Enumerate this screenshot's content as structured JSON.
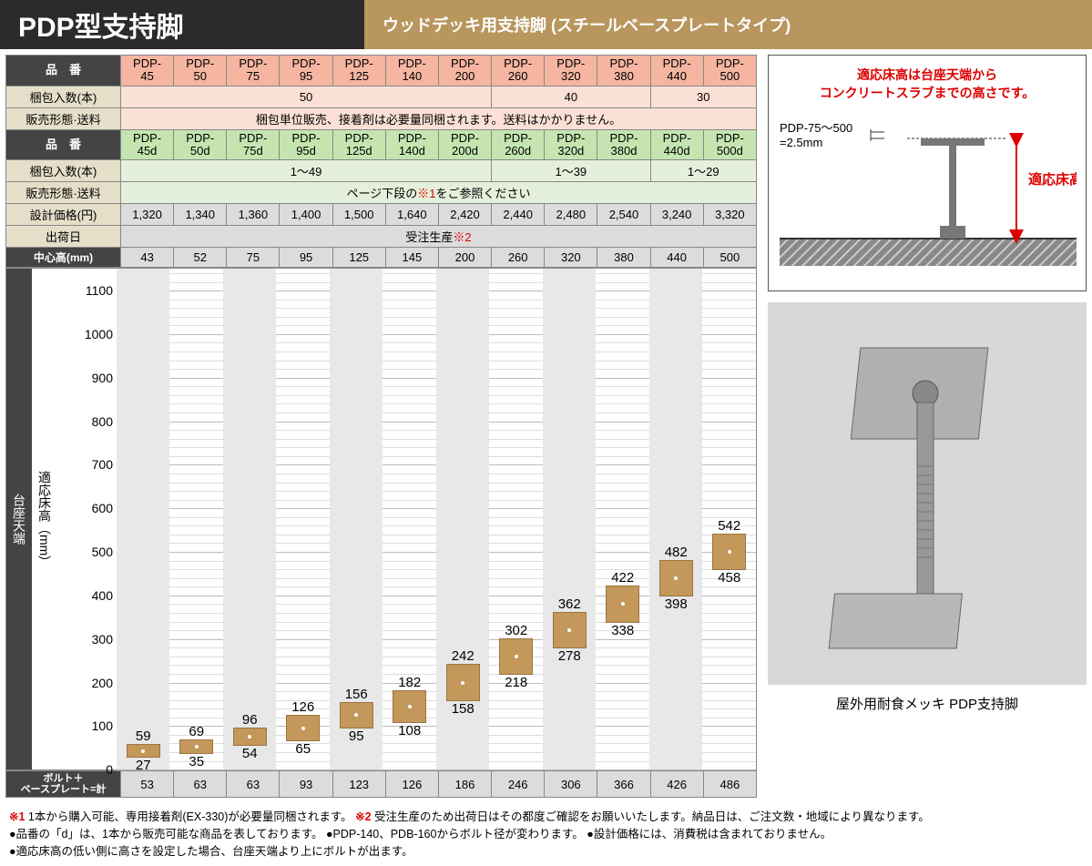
{
  "header": {
    "title": "PDP型支持脚",
    "subtitle": "ウッドデッキ用支持脚 (スチールベースプレートタイプ)"
  },
  "tableLabels": {
    "hinban": "品　番",
    "konpo": "梱包入数(本)",
    "hanbai": "販売形態·送料",
    "sekkei": "設計価格(円)",
    "shukka": "出荷日",
    "chushinkou": "中心高(mm)",
    "boltRow": "ボルト＋\nベースプレート=計"
  },
  "pinkRow": {
    "codes": [
      "PDP-45",
      "PDP-50",
      "PDP-75",
      "PDP-95",
      "PDP-125",
      "PDP-140",
      "PDP-200",
      "PDP-260",
      "PDP-320",
      "PDP-380",
      "PDP-440",
      "PDP-500"
    ],
    "konpoGroups": [
      {
        "span": 7,
        "value": "50"
      },
      {
        "span": 3,
        "value": "40"
      },
      {
        "span": 2,
        "value": "30"
      }
    ],
    "hanbai": "梱包単位販売、接着剤は必要量同梱されます。送料はかかりません。"
  },
  "greenRow": {
    "codes": [
      "PDP-45d",
      "PDP-50d",
      "PDP-75d",
      "PDP-95d",
      "PDP-125d",
      "PDP-140d",
      "PDP-200d",
      "PDP-260d",
      "PDP-320d",
      "PDP-380d",
      "PDP-440d",
      "PDP-500d"
    ],
    "konpoGroups": [
      {
        "span": 7,
        "value": "1～49"
      },
      {
        "span": 3,
        "value": "1～39"
      },
      {
        "span": 2,
        "value": "1～29"
      }
    ],
    "hanbaiPrefix": "ページ下段の",
    "hanbaiRed": "※1",
    "hanbaiSuffix": "をご参照ください"
  },
  "prices": [
    "1,320",
    "1,340",
    "1,360",
    "1,400",
    "1,500",
    "1,640",
    "2,420",
    "2,440",
    "2,480",
    "2,540",
    "3,240",
    "3,320"
  ],
  "shukkaPrefix": "受注生産",
  "shukkaRed": "※2",
  "centerHeights": [
    "43",
    "52",
    "75",
    "95",
    "125",
    "145",
    "200",
    "260",
    "320",
    "380",
    "440",
    "500"
  ],
  "boltValues": [
    "53",
    "63",
    "63",
    "93",
    "123",
    "126",
    "186",
    "246",
    "306",
    "366",
    "426",
    "486"
  ],
  "chart": {
    "ylabel1": "台座天端",
    "ylabel2": "適応床高（mm）",
    "ymax": 1150,
    "ymin": 0,
    "colWidthPct": 8.333,
    "yticks": [
      0,
      100,
      200,
      300,
      400,
      500,
      600,
      700,
      800,
      900,
      1000,
      1100
    ],
    "minorStep": 20,
    "ranges": [
      {
        "low": 27,
        "high": 59
      },
      {
        "low": 35,
        "high": 69
      },
      {
        "low": 54,
        "high": 96
      },
      {
        "low": 65,
        "high": 126
      },
      {
        "low": 95,
        "high": 156
      },
      {
        "low": 108,
        "high": 182
      },
      {
        "low": 158,
        "high": 242
      },
      {
        "low": 218,
        "high": 302
      },
      {
        "low": 278,
        "high": 362
      },
      {
        "low": 338,
        "high": 422
      },
      {
        "low": 398,
        "high": 482
      },
      {
        "low": 458,
        "high": 542
      }
    ],
    "barColor": "#c4975a",
    "altColBg": "#e8e8e8"
  },
  "diagram": {
    "line1": "適応床高は台座天端から",
    "line2": "コンクリートスラブまでの高さです。",
    "dimLabel1": "PDP-75～500",
    "dimLabel2": " =2.5mm",
    "rangeLabel": "適応床高",
    "rangeLabelColor": "#d00"
  },
  "photo": {
    "caption": "屋外用耐食メッキ PDP支持脚"
  },
  "notes": {
    "n1red": "※1",
    "n1": " 1本から購入可能、専用接着剤(EX-330)が必要量同梱されます。 ",
    "n2red": "※2",
    "n2": " 受注生産のため出荷日はその都度ご確認をお願いいたします。納品日は、ご注文数・地域により異なります。",
    "b1": "●品番の「d」は、1本から販売可能な商品を表しております。",
    "b2": "●PDP-140、PDB-160からボルト径が変わります。",
    "b3": "●設計価格には、消費税は含まれておりません。",
    "b4": "●適応床高の低い側に高さを設定した場合、台座天端より上にボルトが出ます。"
  },
  "colors": {
    "headerDark": "#2b2b2b",
    "subtitleBg": "#b8965d",
    "pink": "#f5b5a0",
    "pinkLight": "#fbe0d5",
    "green": "#c5e5b0",
    "greenLight": "#e5f0dc",
    "beige": "#e5dec8"
  }
}
